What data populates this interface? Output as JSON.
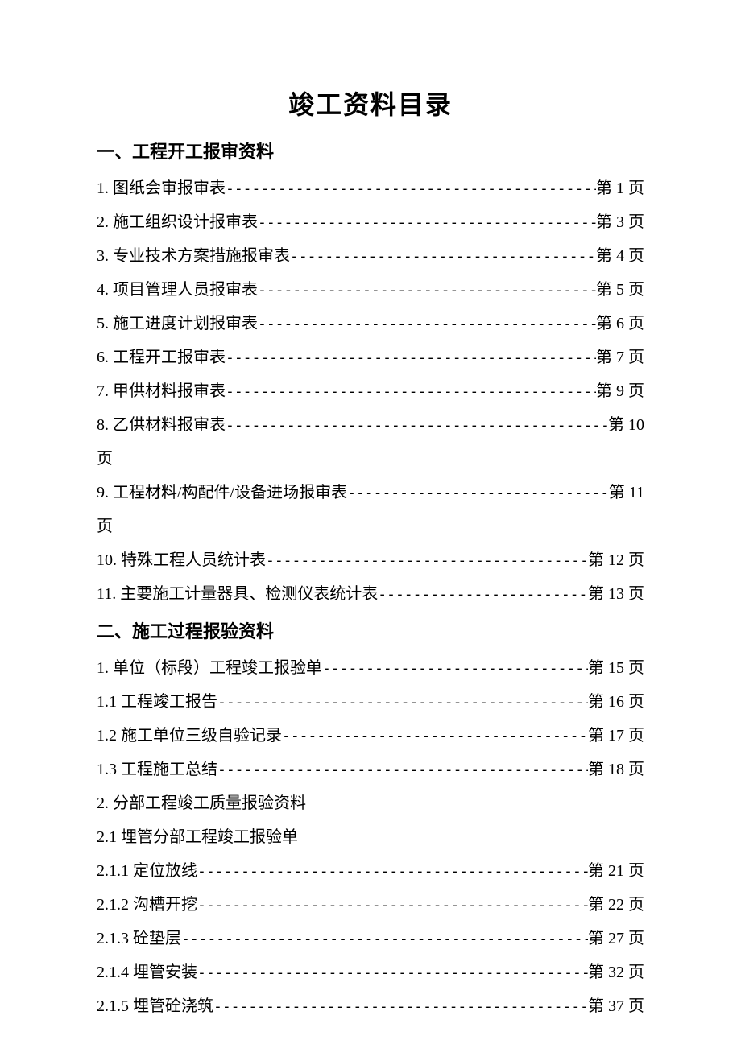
{
  "document": {
    "title": "竣工资料目录",
    "title_fontsize": 32,
    "body_fontsize": 20,
    "heading_fontsize": 22,
    "text_color": "#000000",
    "background_color": "#ffffff",
    "font_family": "SimSun"
  },
  "sections": [
    {
      "heading": "一、工程开工报审资料",
      "items": [
        {
          "label": "1. 图纸会审报审表",
          "page": "第 1 页",
          "wrapped": false
        },
        {
          "label": "2. 施工组织设计报审表",
          "page": "第 3 页",
          "wrapped": false
        },
        {
          "label": "3. 专业技术方案措施报审表",
          "page": "第 4 页",
          "wrapped": false
        },
        {
          "label": "4. 项目管理人员报审表",
          "page": "第 5 页",
          "wrapped": false
        },
        {
          "label": "5. 施工进度计划报审表",
          "page": "第 6 页",
          "wrapped": false
        },
        {
          "label": "6. 工程开工报审表",
          "page": "第 7 页",
          "wrapped": false
        },
        {
          "label": "7. 甲供材料报审表",
          "page": "第 9 页",
          "wrapped": false
        },
        {
          "label": "8. 乙供材料报审表",
          "page": "第 10",
          "page_suffix": "页",
          "wrapped": true
        },
        {
          "label": "9. 工程材料/构配件/设备进场报审表",
          "page": "第 11",
          "page_suffix": "页",
          "wrapped": true
        },
        {
          "label": "10. 特殊工程人员统计表",
          "page": " 第 12 页",
          "wrapped": false
        },
        {
          "label": "11. 主要施工计量器具、检测仪表统计表",
          "page": " 第 13 页",
          "wrapped": false
        }
      ]
    },
    {
      "heading": "二、施工过程报验资料",
      "items": [
        {
          "label": "1.  单位（标段）工程竣工报验单",
          "page": " 第 15 页",
          "wrapped": false
        },
        {
          "label": "1.1 工程竣工报告",
          "page": "第 16 页",
          "wrapped": false
        },
        {
          "label": "1.2 施工单位三级自验记录",
          "page": "第 17 页",
          "wrapped": false
        },
        {
          "label": "1.3 工程施工总结",
          "page": "第 18 页",
          "wrapped": false
        },
        {
          "label": "2. 分部工程竣工质量报验资料",
          "page": null,
          "wrapped": false
        },
        {
          "label": "2.1 埋管分部工程竣工报验单",
          "page": null,
          "wrapped": false
        },
        {
          "label": "2.1.1 定位放线",
          "page": "第 21 页",
          "wrapped": false
        },
        {
          "label": "2.1.2 沟槽开挖",
          "page": "第 22 页",
          "wrapped": false
        },
        {
          "label": "2.1.3 砼垫层",
          "page": "第 27 页",
          "wrapped": false
        },
        {
          "label": "2.1.4 埋管安装",
          "page": "第 32 页",
          "wrapped": false
        },
        {
          "label": "2.1.5 埋管砼浇筑",
          "page": "第 37 页",
          "wrapped": false
        }
      ]
    }
  ]
}
